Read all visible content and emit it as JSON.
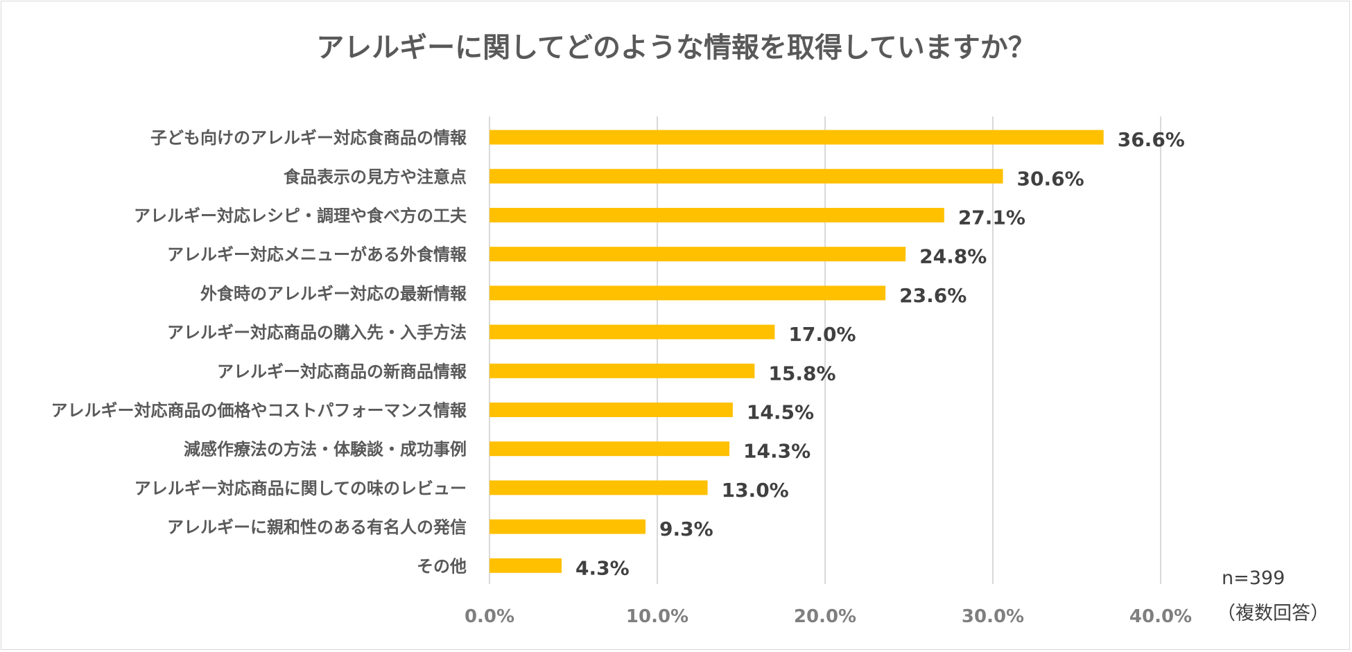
{
  "chart_data": {
    "type": "bar",
    "orientation": "horizontal",
    "title": "アレルギーに関してどのような情報を取得していますか？",
    "categories": [
      "子ども向けのアレルギー対応食商品の情報",
      "食品表示の見方や注意点",
      "アレルギー対応レシピ・調理や食べ方の工夫",
      "アレルギー対応メニューがある外食情報",
      "外食時のアレルギー対応の最新情報",
      "アレルギー対応商品の購入先・入手方法",
      "アレルギー対応商品の新商品情報",
      "アレルギー対応商品の価格やコストパフォーマンス情報",
      "減感作療法の方法・体験談・成功事例",
      "アレルギー対応商品に関しての味のレビュー",
      "アレルギーに親和性のある有名人の発信",
      "その他"
    ],
    "values": [
      36.6,
      30.6,
      27.1,
      24.8,
      23.6,
      17.0,
      15.8,
      14.5,
      14.3,
      13.0,
      9.3,
      4.3
    ],
    "value_labels": [
      "36.6%",
      "30.6%",
      "27.1%",
      "24.8%",
      "23.6%",
      "17.0%",
      "15.8%",
      "14.5%",
      "14.3%",
      "13.0%",
      "9.3%",
      "4.3%"
    ],
    "xlim": [
      0,
      40
    ],
    "x_ticks": [
      0,
      10,
      20,
      30,
      40
    ],
    "x_tick_labels": [
      "0.0%",
      "10.0%",
      "20.0%",
      "30.0%",
      "40.0%"
    ],
    "grid": "vertical",
    "bar_color": "#FFC000",
    "notes": [
      "n=399",
      "（複数回答）"
    ]
  }
}
